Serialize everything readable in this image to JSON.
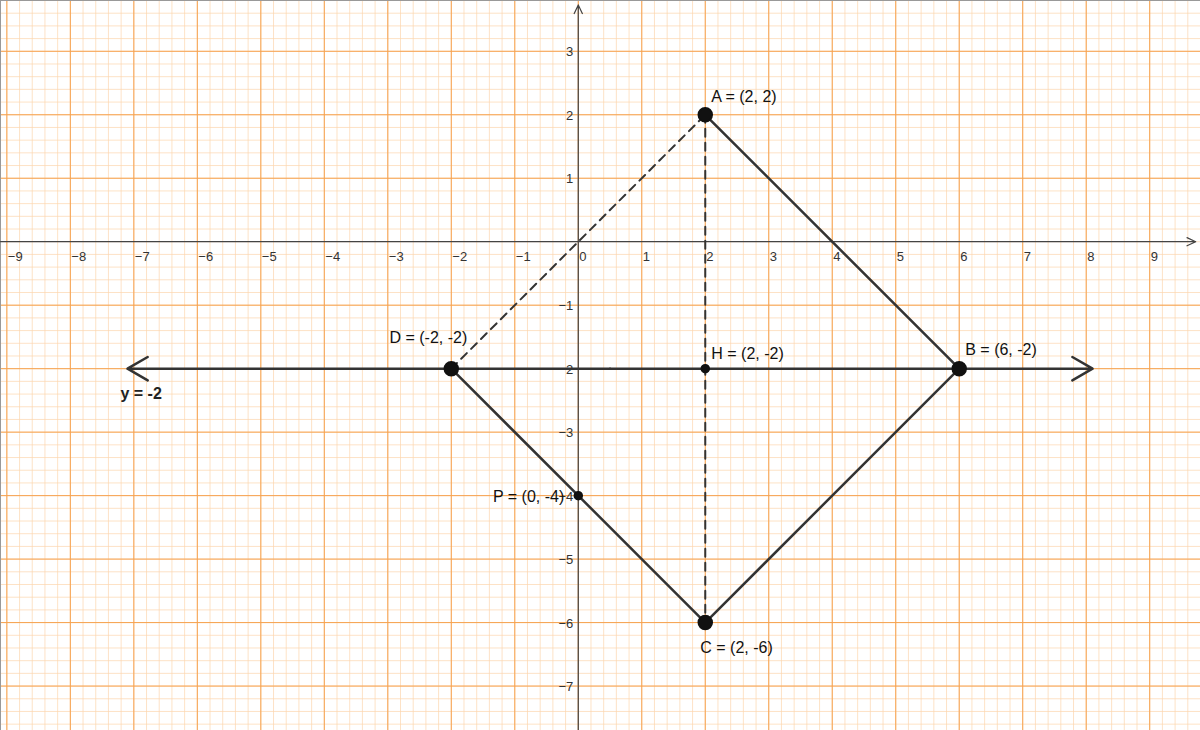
{
  "chart_data": {
    "type": "geometry",
    "grid": true,
    "xlim": [
      -9.1,
      9.8
    ],
    "ylim": [
      -7.7,
      3.8
    ],
    "xticks": [
      -9,
      -8,
      -7,
      -6,
      -5,
      -4,
      -3,
      -2,
      -1,
      0,
      1,
      2,
      3,
      4,
      5,
      6,
      7,
      8,
      9
    ],
    "yticks": [
      -7,
      -6,
      -5,
      -4,
      -3,
      -2,
      -1,
      1,
      2,
      3
    ],
    "points": [
      {
        "label": "A = (2, 2)",
        "x": 2,
        "y": 2,
        "marker": "large"
      },
      {
        "label": "B = (6, -2)",
        "x": 6,
        "y": -2,
        "marker": "large"
      },
      {
        "label": "C = (2, -6)",
        "x": 2,
        "y": -6,
        "marker": "large"
      },
      {
        "label": "D = (-2, -2)",
        "x": -2,
        "y": -2,
        "marker": "large"
      },
      {
        "label": "H = (2, -2)",
        "x": 2,
        "y": -2,
        "marker": "small"
      },
      {
        "label": "P = (0, -4)",
        "x": 0,
        "y": -4,
        "marker": "small"
      }
    ],
    "segments": [
      {
        "x": [
          2,
          6
        ],
        "y": [
          2,
          -2
        ],
        "line_style": "solid"
      },
      {
        "x": [
          6,
          2
        ],
        "y": [
          -2,
          -6
        ],
        "line_style": "solid"
      },
      {
        "x": [
          2,
          -2
        ],
        "y": [
          -6,
          -2
        ],
        "line_style": "solid"
      },
      {
        "x": [
          -2,
          2
        ],
        "y": [
          -2,
          2
        ],
        "line_style": "dashed"
      },
      {
        "x": [
          2,
          2
        ],
        "y": [
          2,
          -6
        ],
        "line_style": "dashed"
      }
    ],
    "lines": [
      {
        "label": "y = -2",
        "x": [
          -7.1,
          8.1
        ],
        "y": [
          -2,
          -2
        ],
        "line_style": "solid",
        "marker": "arrow"
      }
    ]
  }
}
